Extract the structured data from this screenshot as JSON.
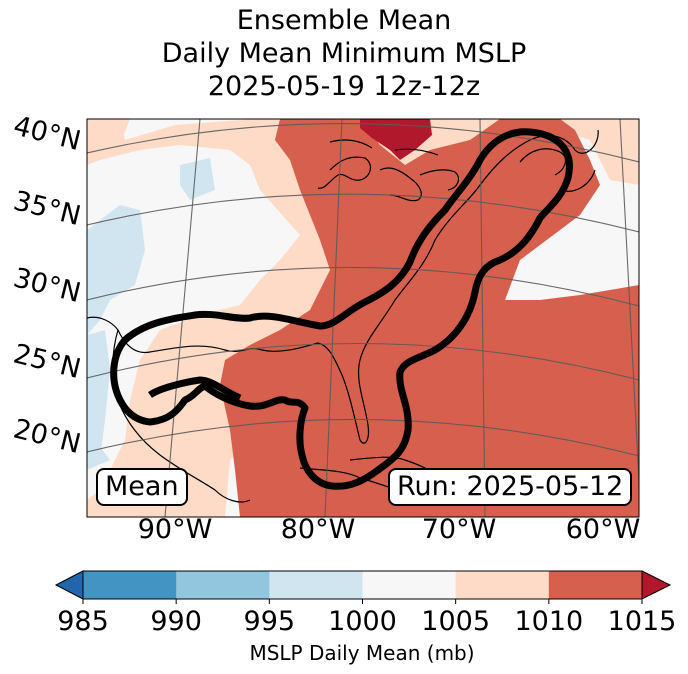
{
  "title": {
    "line1": "Ensemble Mean",
    "line2": "Daily Mean Minimum MSLP",
    "line3": "2025-05-19 12z-12z"
  },
  "map": {
    "lat_labels": [
      "40°N",
      "35°N",
      "30°N",
      "25°N",
      "20°N"
    ],
    "lon_labels": [
      "90°W",
      "80°W",
      "70°W",
      "60°W"
    ],
    "badge_left": "Mean",
    "badge_right": "Run: 2025-05-12",
    "field_colors": {
      "lt990": "#9ac8e0",
      "995_1000": "#d1e5f0",
      "1000_1005": "#f7f7f7",
      "1005_1010": "#fddbc7",
      "1010_1015": "#d6604d",
      "gt1015": "#b2182b"
    }
  },
  "colorbar": {
    "label": "MSLP Daily Mean (mb)",
    "ticks": [
      "985",
      "990",
      "995",
      "1000",
      "1005",
      "1010",
      "1015"
    ],
    "colors": [
      "#4393c3",
      "#92c5de",
      "#d1e5f0",
      "#f7f7f7",
      "#fddbc7",
      "#d6604d"
    ],
    "under_color": "#2166ac",
    "over_color": "#b2182b"
  }
}
